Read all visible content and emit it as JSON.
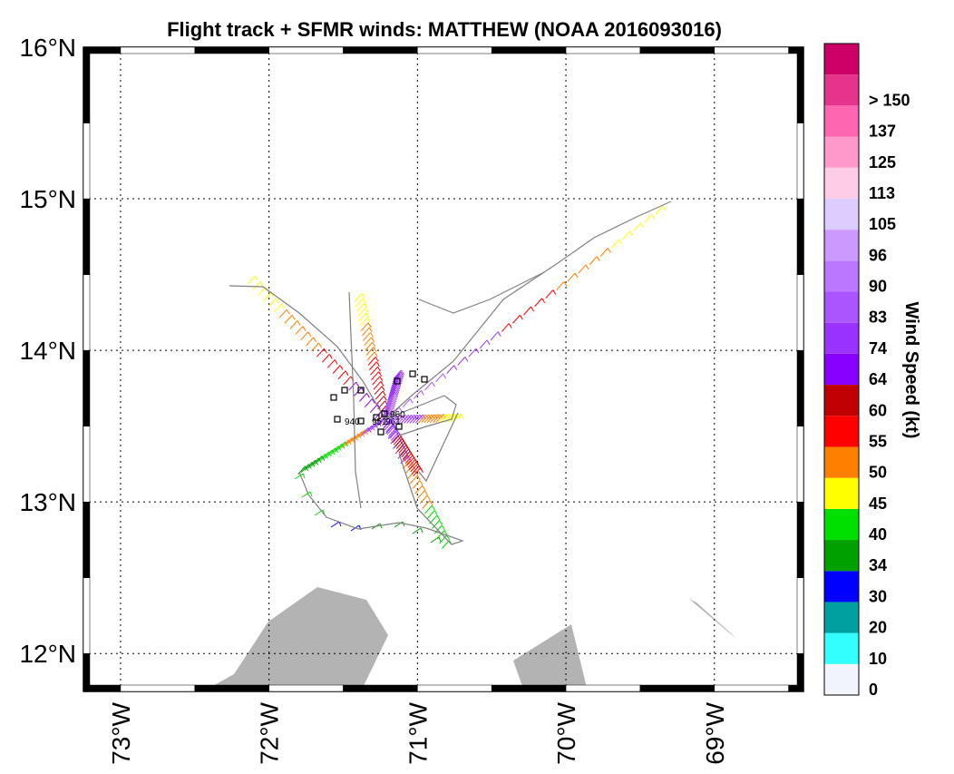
{
  "title": "Flight track + SFMR winds: MATTHEW (NOAA 2016093016)",
  "map": {
    "lon_range": [
      -73.25,
      -68.4
    ],
    "lat_range": [
      11.75,
      16.0
    ],
    "lat_ticks": [
      {
        "value": 12,
        "label": "12°N"
      },
      {
        "value": 13,
        "label": "13°N"
      },
      {
        "value": 14,
        "label": "14°N"
      },
      {
        "value": 15,
        "label": "15°N"
      },
      {
        "value": 16,
        "label": "16°N"
      }
    ],
    "lon_ticks": [
      {
        "value": -73,
        "label": "73°W"
      },
      {
        "value": -72,
        "label": "72°W"
      },
      {
        "value": -71,
        "label": "71°W"
      },
      {
        "value": -70,
        "label": "70°W"
      },
      {
        "value": -69,
        "label": "69°W"
      }
    ],
    "grid": true,
    "land_color": "#b3b3b3",
    "track_color": "#808080"
  },
  "pressure_labels": [
    "960",
    "940",
    "951",
    "961"
  ],
  "colorbar": {
    "title": "Wind Speed (kt)",
    "labels": [
      "0",
      "10",
      "20",
      "30",
      "34",
      "40",
      "45",
      "50",
      "55",
      "60",
      "64",
      "74",
      "83",
      "90",
      "96",
      "105",
      "113",
      "125",
      "137",
      "> 150"
    ],
    "colors": [
      "#f2f4fb",
      "#33ffff",
      "#00a0a0",
      "#0000ff",
      "#00a000",
      "#00e000",
      "#ffff00",
      "#ff8000",
      "#ff0000",
      "#c00000",
      "#8800ff",
      "#9a33ff",
      "#aa55ff",
      "#bb77ff",
      "#cc99ff",
      "#ddccff",
      "#ffcce6",
      "#ff99cc",
      "#ff66b2",
      "#e6338c",
      "#cc0066"
    ]
  }
}
